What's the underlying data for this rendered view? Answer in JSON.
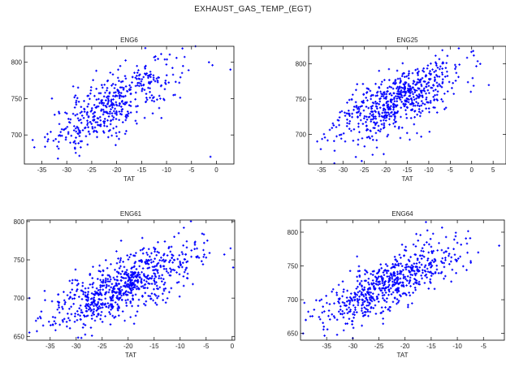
{
  "figure": {
    "title": "EXHAUST_GAS_TEMP_(EGT)"
  },
  "chart_data": [
    {
      "type": "scatter",
      "title": "ENG6",
      "xlabel": "TAT",
      "ylabel": "",
      "color": "#0000ff",
      "xlim": [
        -38.5,
        3.5
      ],
      "ylim": [
        660,
        822
      ],
      "xticks": [
        -35,
        -30,
        -25,
        -20,
        -15,
        -10,
        -5,
        0
      ],
      "yticks": [
        700,
        750,
        800
      ],
      "trend": {
        "x0": -35,
        "y0": 688,
        "x1": -5,
        "y1": 800
      },
      "spread": {
        "xmin": -37,
        "xmax": -4,
        "sx": 6.5,
        "sy": 20
      },
      "outliers": [
        [
          -4.2,
          822
        ],
        [
          -1.5,
          800
        ],
        [
          -0.8,
          796
        ],
        [
          -1.2,
          670
        ],
        [
          2.8,
          790
        ],
        [
          -36.5,
          683
        ],
        [
          -8,
          806
        ]
      ],
      "n": 460
    },
    {
      "type": "scatter",
      "title": "ENG25",
      "xlabel": "TAT",
      "ylabel": "",
      "color": "#0000ff",
      "xlim": [
        -38,
        8
      ],
      "ylim": [
        658,
        825
      ],
      "xticks": [
        -35,
        -30,
        -25,
        -20,
        -15,
        -10,
        -5,
        0,
        5
      ],
      "yticks": [
        700,
        750,
        800
      ],
      "trend": {
        "x0": -35,
        "y0": 700,
        "x1": 0,
        "y1": 795
      },
      "spread": {
        "xmin": -37,
        "xmax": 2,
        "sx": 7,
        "sy": 20
      },
      "outliers": [
        [
          -3,
          822
        ],
        [
          0.5,
          812
        ],
        [
          4,
          770
        ],
        [
          2,
          800
        ],
        [
          -20.5,
          672
        ],
        [
          -27,
          668
        ],
        [
          -32,
          659
        ],
        [
          -36,
          690
        ]
      ],
      "n": 640
    },
    {
      "type": "scatter",
      "title": "ENG61",
      "xlabel": "TAT",
      "ylabel": "",
      "color": "#0000ff",
      "xlim": [
        -39.5,
        0.5
      ],
      "ylim": [
        645,
        802
      ],
      "xticks": [
        -35,
        -30,
        -25,
        -20,
        -15,
        -10,
        -5,
        0
      ],
      "yticks": [
        650,
        700,
        750,
        800
      ],
      "trend": {
        "x0": -35,
        "y0": 675,
        "x1": -5,
        "y1": 760
      },
      "spread": {
        "xmin": -38,
        "xmax": -4,
        "sx": 7,
        "sy": 19
      },
      "outliers": [
        [
          -39,
          655
        ],
        [
          -39,
          700
        ],
        [
          -1.5,
          757
        ],
        [
          -0.3,
          765
        ],
        [
          0.2,
          740
        ],
        [
          -5,
          753
        ],
        [
          -29,
          648
        ]
      ],
      "n": 740
    },
    {
      "type": "scatter",
      "title": "ENG64",
      "xlabel": "TAT",
      "ylabel": "",
      "color": "#0000ff",
      "xlim": [
        -40,
        -1
      ],
      "ylim": [
        640,
        818
      ],
      "xticks": [
        -35,
        -30,
        -25,
        -20,
        -15,
        -10,
        -5
      ],
      "yticks": [
        650,
        700,
        750,
        800
      ],
      "trend": {
        "x0": -37,
        "y0": 672,
        "x1": -10,
        "y1": 770
      },
      "spread": {
        "xmin": -39.5,
        "xmax": -7,
        "sx": 6.5,
        "sy": 20
      },
      "outliers": [
        [
          -39.5,
          650
        ],
        [
          -39,
          670
        ],
        [
          -2,
          780
        ],
        [
          -6,
          770
        ],
        [
          -16,
          815
        ],
        [
          -30,
          643
        ],
        [
          -33,
          648
        ]
      ],
      "n": 620
    }
  ]
}
